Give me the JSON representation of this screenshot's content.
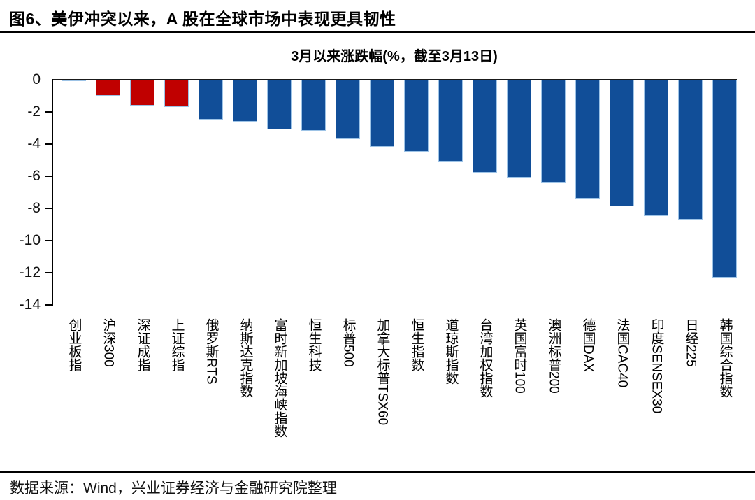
{
  "page": {
    "title": "图6、美伊冲突以来，A 股在全球市场中表现更具韧性",
    "source_note": "数据来源：Wind，兴业证券经济与金融研究院整理"
  },
  "chart_data": {
    "type": "bar",
    "title": "3月以来涨跌幅(%，截至3月13日)",
    "categories": [
      "创业板指",
      "沪深300",
      "深证成指",
      "上证综指",
      "俄罗斯RTS",
      "纳斯达克指数",
      "富时新加坡海峡指数",
      "恒生科技",
      "标普500",
      "加拿大标普TSX60",
      "恒生指数",
      "道琼斯指数",
      "台湾加权指数",
      "英国富时100",
      "澳洲标普200",
      "德国DAX",
      "法国CAC40",
      "印度SENSEX30",
      "日经225",
      "韩国综合指数"
    ],
    "values": [
      0.0,
      -0.9,
      -1.5,
      -1.6,
      -2.4,
      -2.5,
      -3.0,
      -3.1,
      -3.6,
      -4.1,
      -4.4,
      -5.0,
      -5.7,
      -6.0,
      -6.3,
      -7.3,
      -7.8,
      -8.4,
      -8.6,
      -12.2
    ],
    "red_indices": [
      1,
      2,
      3
    ],
    "colors": {
      "red": "#C00000",
      "blue": "#114E98",
      "bar_outline": "#9DC3E6"
    },
    "xlabel": "",
    "ylabel": "",
    "ylim": [
      -14,
      0
    ],
    "yticks": [
      0,
      -2,
      -4,
      -6,
      -8,
      -10,
      -12,
      -14
    ],
    "grid": false,
    "legend": false
  }
}
